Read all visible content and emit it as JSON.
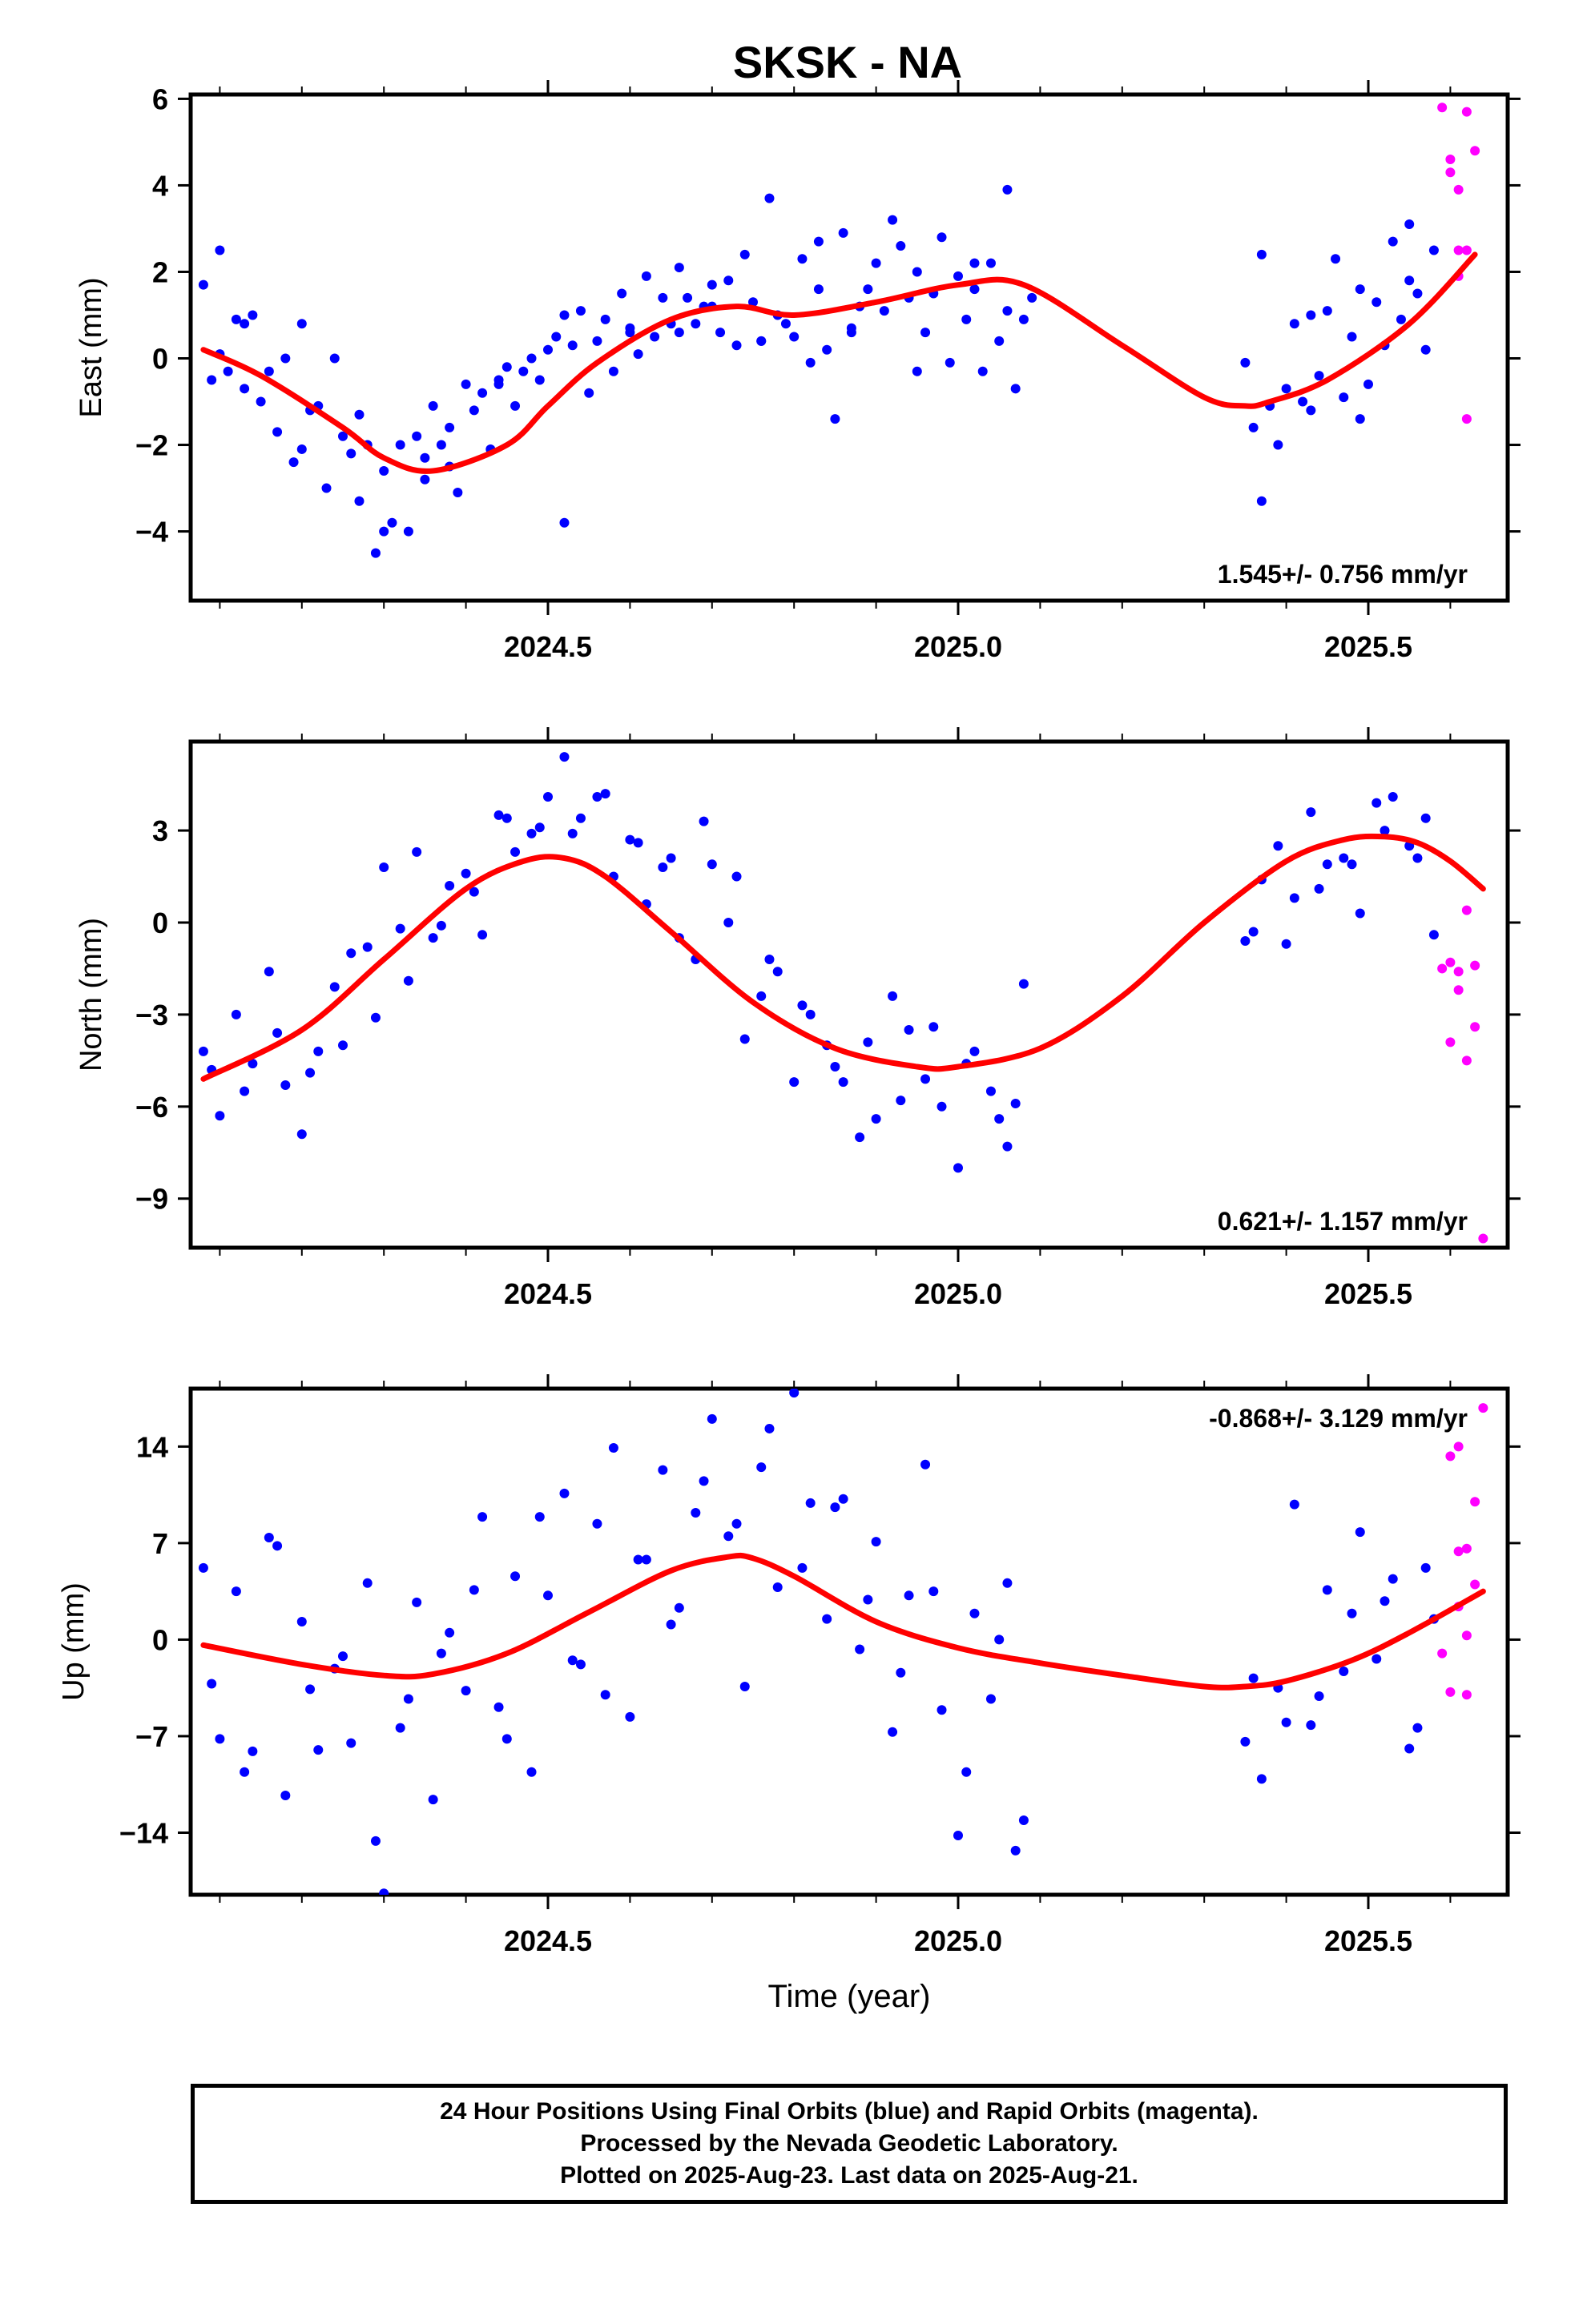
{
  "title": "SKSK - NA",
  "footer": {
    "line1": "24 Hour Positions Using Final Orbits (blue) and Rapid Orbits (magenta).",
    "line2": "Processed by the Nevada Geodetic Laboratory.",
    "line3": "Plotted on 2025-Aug-23. Last data on 2025-Aug-21."
  },
  "colors": {
    "final": "#0000ff",
    "rapid": "#ff00ff",
    "fit": "#ff0000"
  },
  "chart_data": [
    {
      "type": "scatter",
      "panel": "east",
      "ylabel": "East (mm)",
      "xlabel": "",
      "x_ticks": [
        "2024.5",
        "2025.0",
        "2025.5"
      ],
      "xlim": [
        2024.04,
        2025.64
      ],
      "ylim": [
        -5.6,
        6.1
      ],
      "y_ticks": [
        "−4",
        "−2",
        "0",
        "2",
        "4",
        "6"
      ],
      "y_tick_values": [
        -4,
        -2,
        0,
        2,
        4,
        6
      ],
      "rate_label": "1.545+/- 0.756 mm/yr",
      "fit_curve": {
        "x": [
          2024.08,
          2024.15,
          2024.25,
          2024.3,
          2024.36,
          2024.45,
          2024.5,
          2024.56,
          2024.65,
          2024.73,
          2024.8,
          2024.9,
          2025.0,
          2025.08,
          2025.2,
          2025.3,
          2025.35,
          2025.38,
          2025.45,
          2025.55,
          2025.63
        ],
        "y": [
          0.2,
          -0.4,
          -1.6,
          -2.3,
          -2.6,
          -2.0,
          -1.1,
          -0.1,
          0.9,
          1.2,
          1.0,
          1.3,
          1.7,
          1.7,
          0.3,
          -0.9,
          -1.1,
          -1.0,
          -0.5,
          0.8,
          2.4
        ]
      },
      "final_orbits": {
        "x": [
          2024.08,
          2024.09,
          2024.1,
          2024.11,
          2024.12,
          2024.13,
          2024.14,
          2024.15,
          2024.16,
          2024.17,
          2024.18,
          2024.19,
          2024.2,
          2024.21,
          2024.22,
          2024.23,
          2024.24,
          2024.25,
          2024.26,
          2024.27,
          2024.28,
          2024.29,
          2024.3,
          2024.31,
          2024.32,
          2024.33,
          2024.34,
          2024.35,
          2024.36,
          2024.37,
          2024.38,
          2024.39,
          2024.4,
          2024.41,
          2024.42,
          2024.43,
          2024.44,
          2024.45,
          2024.46,
          2024.47,
          2024.48,
          2024.49,
          2024.5,
          2024.51,
          2024.52,
          2024.53,
          2024.54,
          2024.55,
          2024.56,
          2024.57,
          2024.58,
          2024.59,
          2024.6,
          2024.61,
          2024.62,
          2024.63,
          2024.64,
          2024.65,
          2024.66,
          2024.67,
          2024.68,
          2024.69,
          2024.7,
          2024.71,
          2024.72,
          2024.73,
          2024.74,
          2024.75,
          2024.76,
          2024.77,
          2024.78,
          2024.79,
          2024.8,
          2024.81,
          2024.82,
          2024.83,
          2024.84,
          2024.85,
          2024.86,
          2024.87,
          2024.88,
          2024.89,
          2024.9,
          2024.91,
          2024.92,
          2024.93,
          2024.94,
          2024.95,
          2024.96,
          2024.97,
          2024.98,
          2024.99,
          2025.0,
          2025.01,
          2025.02,
          2025.03,
          2025.04,
          2025.05,
          2025.06,
          2025.07,
          2025.08,
          2025.09,
          2025.35,
          2025.36,
          2025.37,
          2025.38,
          2025.39,
          2025.4,
          2025.41,
          2025.42,
          2025.43,
          2025.44,
          2025.45,
          2025.46,
          2025.47,
          2025.48,
          2025.49,
          2025.5,
          2025.51,
          2025.52,
          2025.53,
          2025.54,
          2025.55,
          2025.56,
          2025.57,
          2025.58,
          2024.1,
          2024.13,
          2024.2,
          2024.27,
          2024.3,
          2024.35,
          2024.38,
          2024.44,
          2024.52,
          2024.6,
          2024.66,
          2024.7,
          2024.76,
          2024.83,
          2024.87,
          2024.95,
          2025.02,
          2025.06,
          2025.37,
          2025.43,
          2025.49,
          2025.55
        ],
        "y": [
          1.7,
          -0.5,
          2.5,
          -0.3,
          0.9,
          -0.7,
          1.0,
          -1.0,
          -0.3,
          -1.7,
          0.0,
          -2.4,
          0.8,
          -1.2,
          -1.1,
          -3.0,
          0.0,
          -1.8,
          -2.2,
          -3.3,
          -2.0,
          -4.5,
          -2.6,
          -3.8,
          -2.0,
          -4.0,
          -1.8,
          -2.3,
          -1.1,
          -2.0,
          -1.6,
          -3.1,
          -0.6,
          -1.2,
          -0.8,
          -2.1,
          -0.6,
          -0.2,
          -1.1,
          -0.3,
          0.0,
          -0.5,
          0.2,
          0.5,
          1.0,
          0.3,
          1.1,
          -0.8,
          0.4,
          0.9,
          -0.3,
          1.5,
          0.6,
          0.1,
          1.9,
          0.5,
          1.4,
          0.8,
          2.1,
          1.4,
          0.8,
          1.2,
          1.7,
          0.6,
          1.8,
          0.3,
          2.4,
          1.3,
          0.4,
          3.7,
          1.0,
          0.8,
          0.5,
          2.3,
          -0.1,
          1.6,
          0.2,
          -1.4,
          2.9,
          0.7,
          1.2,
          1.6,
          2.2,
          1.1,
          3.2,
          2.6,
          1.4,
          2.0,
          0.6,
          1.5,
          2.8,
          -0.1,
          1.9,
          0.9,
          1.6,
          -0.3,
          2.2,
          0.4,
          1.1,
          -0.7,
          0.9,
          1.4,
          -0.1,
          -1.6,
          -3.3,
          -1.1,
          -2.0,
          -0.7,
          0.8,
          -1.0,
          -1.2,
          -0.4,
          1.1,
          2.3,
          -0.9,
          0.5,
          1.6,
          -0.6,
          1.3,
          0.3,
          2.7,
          0.9,
          3.1,
          1.5,
          0.2,
          2.5,
          0.1,
          0.8,
          -2.1,
          -1.3,
          -4.0,
          -2.8,
          -2.5,
          -0.5,
          -3.8,
          0.7,
          0.6,
          1.2,
          0.4,
          2.7,
          0.6,
          -0.3,
          2.2,
          3.9,
          2.4,
          1.0,
          -1.4,
          1.8
        ],
        "color": "#0000ff"
      },
      "rapid_orbits": {
        "x": [
          2025.59,
          2025.6,
          2025.61,
          2025.62,
          2025.63,
          2025.6,
          2025.61,
          2025.62,
          2025.61,
          2025.62
        ],
        "y": [
          5.8,
          4.3,
          3.9,
          5.7,
          4.8,
          4.6,
          2.5,
          2.5,
          1.9,
          -1.4
        ],
        "color": "#ff00ff"
      }
    },
    {
      "type": "scatter",
      "panel": "north",
      "ylabel": "North (mm)",
      "xlabel": "",
      "x_ticks": [
        "2024.5",
        "2025.0",
        "2025.5"
      ],
      "xlim": [
        2024.04,
        2025.64
      ],
      "ylim": [
        -10.6,
        5.9
      ],
      "y_ticks": [
        "−9",
        "−6",
        "−3",
        "0",
        "3"
      ],
      "y_tick_values": [
        -9,
        -6,
        -3,
        0,
        3
      ],
      "rate_label": "0.621+/- 1.157 mm/yr",
      "fit_curve": {
        "x": [
          2024.08,
          2024.2,
          2024.3,
          2024.4,
          2024.47,
          2024.52,
          2024.57,
          2024.65,
          2024.75,
          2024.85,
          2024.95,
          2025.0,
          2025.1,
          2025.2,
          2025.3,
          2025.4,
          2025.47,
          2025.52,
          2025.56,
          2025.6,
          2025.64
        ],
        "y": [
          -5.1,
          -3.5,
          -1.2,
          1.1,
          2.0,
          2.1,
          1.5,
          -0.3,
          -2.6,
          -4.1,
          -4.7,
          -4.7,
          -4.1,
          -2.4,
          0.0,
          2.0,
          2.7,
          2.8,
          2.6,
          2.0,
          1.1
        ],
        "color": "#ff0000"
      },
      "final_orbits": {
        "x": [
          2024.08,
          2024.1,
          2024.12,
          2024.14,
          2024.16,
          2024.18,
          2024.2,
          2024.22,
          2024.24,
          2024.26,
          2024.28,
          2024.3,
          2024.32,
          2024.34,
          2024.36,
          2024.38,
          2024.4,
          2024.42,
          2024.44,
          2024.46,
          2024.48,
          2024.5,
          2024.52,
          2024.54,
          2024.56,
          2024.58,
          2024.6,
          2024.62,
          2024.64,
          2024.66,
          2024.68,
          2024.7,
          2024.72,
          2024.74,
          2024.76,
          2024.78,
          2024.8,
          2024.82,
          2024.84,
          2024.86,
          2024.88,
          2024.9,
          2024.92,
          2024.94,
          2024.96,
          2024.98,
          2025.0,
          2025.02,
          2025.04,
          2025.06,
          2025.08,
          2025.35,
          2025.37,
          2025.39,
          2025.41,
          2025.43,
          2025.45,
          2025.47,
          2025.49,
          2025.51,
          2025.53,
          2025.55,
          2025.57,
          2025.58,
          2024.09,
          2024.13,
          2024.17,
          2024.21,
          2024.25,
          2024.29,
          2024.33,
          2024.37,
          2024.41,
          2024.45,
          2024.49,
          2024.53,
          2024.57,
          2024.61,
          2024.65,
          2024.69,
          2024.73,
          2024.77,
          2024.81,
          2024.85,
          2024.89,
          2024.93,
          2024.97,
          2025.01,
          2025.05,
          2025.07,
          2025.36,
          2025.4,
          2025.44,
          2025.48,
          2025.52,
          2025.56
        ],
        "y": [
          -4.2,
          -6.3,
          -3.0,
          -4.6,
          -1.6,
          -5.3,
          -6.9,
          -4.2,
          -2.1,
          -1.0,
          -0.8,
          1.8,
          -0.2,
          2.3,
          -0.5,
          1.2,
          1.6,
          -0.4,
          3.5,
          2.3,
          2.9,
          4.1,
          5.4,
          3.4,
          4.1,
          1.5,
          2.7,
          0.6,
          1.8,
          -0.5,
          -1.2,
          1.9,
          0.0,
          -3.8,
          -2.4,
          -1.6,
          -5.2,
          -3.0,
          -4.0,
          -5.2,
          -7.0,
          -6.4,
          -2.4,
          -3.5,
          -5.1,
          -6.0,
          -8.0,
          -4.2,
          -5.5,
          -7.3,
          -2.0,
          -0.6,
          1.4,
          2.5,
          0.8,
          3.6,
          1.9,
          2.1,
          0.3,
          3.9,
          4.1,
          2.5,
          3.4,
          -0.4,
          -4.8,
          -5.5,
          -3.6,
          -4.9,
          -4.0,
          -3.1,
          -1.9,
          -0.1,
          1.0,
          3.4,
          3.1,
          2.9,
          4.2,
          2.6,
          2.1,
          3.3,
          1.5,
          -1.2,
          -2.7,
          -4.7,
          -3.9,
          -5.8,
          -3.4,
          -4.6,
          -6.4,
          -5.9,
          -0.3,
          -0.7,
          1.1,
          1.9,
          3.0,
          2.1
        ],
        "color": "#0000ff"
      },
      "rapid_orbits": {
        "x": [
          2025.59,
          2025.6,
          2025.61,
          2025.62,
          2025.63,
          2025.6,
          2025.61,
          2025.62,
          2025.63,
          2025.64
        ],
        "y": [
          -1.5,
          -1.3,
          -1.6,
          0.4,
          -1.4,
          -3.9,
          -2.2,
          -4.5,
          -3.4,
          -10.3
        ],
        "color": "#ff00ff"
      }
    },
    {
      "type": "scatter",
      "panel": "up",
      "ylabel": "Up (mm)",
      "xlabel": "Time (year)",
      "x_ticks": [
        "2024.5",
        "2025.0",
        "2025.5"
      ],
      "xlim": [
        2024.04,
        2025.64
      ],
      "ylim": [
        -18.5,
        18.2
      ],
      "y_ticks": [
        "−14",
        "−7",
        "0",
        "7",
        "14"
      ],
      "y_tick_values": [
        -14,
        -7,
        0,
        7,
        14
      ],
      "rate_label": "-0.868+/- 3.129 mm/yr",
      "fit_curve": {
        "x": [
          2024.08,
          2024.2,
          2024.3,
          2024.36,
          2024.45,
          2024.55,
          2024.65,
          2024.72,
          2024.75,
          2024.8,
          2024.9,
          2025.0,
          2025.1,
          2025.2,
          2025.3,
          2025.35,
          2025.4,
          2025.48,
          2025.55,
          2025.64
        ],
        "y": [
          -0.4,
          -1.8,
          -2.6,
          -2.5,
          -1.0,
          2.0,
          5.0,
          6.0,
          5.9,
          4.6,
          1.3,
          -0.6,
          -1.7,
          -2.6,
          -3.4,
          -3.4,
          -3.0,
          -1.5,
          0.5,
          3.5
        ],
        "color": "#ff0000"
      },
      "final_orbits": {
        "x": [
          2024.08,
          2024.1,
          2024.12,
          2024.14,
          2024.16,
          2024.18,
          2024.2,
          2024.22,
          2024.24,
          2024.26,
          2024.28,
          2024.3,
          2024.32,
          2024.34,
          2024.36,
          2024.38,
          2024.4,
          2024.42,
          2024.44,
          2024.46,
          2024.48,
          2024.5,
          2024.52,
          2024.54,
          2024.56,
          2024.58,
          2024.6,
          2024.62,
          2024.64,
          2024.66,
          2024.68,
          2024.7,
          2024.72,
          2024.74,
          2024.76,
          2024.78,
          2024.8,
          2024.82,
          2024.84,
          2024.86,
          2024.88,
          2024.9,
          2024.92,
          2024.94,
          2024.96,
          2024.98,
          2025.0,
          2025.02,
          2025.04,
          2025.06,
          2025.08,
          2025.35,
          2025.37,
          2025.39,
          2025.41,
          2025.43,
          2025.45,
          2025.47,
          2025.49,
          2025.51,
          2025.53,
          2025.55,
          2025.57,
          2025.58,
          2024.09,
          2024.13,
          2024.17,
          2024.21,
          2024.25,
          2024.29,
          2024.33,
          2024.37,
          2024.41,
          2024.45,
          2024.49,
          2024.53,
          2024.57,
          2024.61,
          2024.65,
          2024.69,
          2024.73,
          2024.77,
          2024.81,
          2024.85,
          2024.89,
          2024.93,
          2024.97,
          2025.01,
          2025.05,
          2025.07,
          2025.36,
          2025.4,
          2025.44,
          2025.48,
          2025.52,
          2025.56
        ],
        "y": [
          5.2,
          -7.2,
          3.5,
          -8.1,
          7.4,
          -11.3,
          1.3,
          -8.0,
          -2.1,
          -7.5,
          4.1,
          -18.4,
          -6.4,
          2.7,
          -11.6,
          0.5,
          -3.7,
          8.9,
          -4.9,
          4.6,
          -9.6,
          3.2,
          10.6,
          -1.8,
          8.4,
          13.9,
          -5.6,
          5.8,
          12.3,
          2.3,
          9.2,
          16.0,
          7.5,
          -3.4,
          12.5,
          3.8,
          17.9,
          9.9,
          1.5,
          10.2,
          -0.7,
          7.1,
          -6.7,
          3.2,
          12.7,
          -5.1,
          -14.2,
          1.9,
          -4.3,
          4.1,
          -13.1,
          -7.4,
          -10.1,
          -3.5,
          9.8,
          -6.2,
          3.6,
          -2.3,
          7.8,
          -1.4,
          4.4,
          -7.9,
          5.2,
          1.5,
          -3.2,
          -9.6,
          6.8,
          -3.6,
          -1.2,
          -14.6,
          -4.3,
          -1.0,
          3.6,
          -7.2,
          8.9,
          -1.5,
          -4.0,
          5.8,
          1.1,
          11.5,
          8.4,
          15.3,
          5.2,
          9.6,
          2.9,
          -2.4,
          3.5,
          -9.6,
          0.0,
          -15.3,
          -2.8,
          -6.0,
          -4.1,
          1.9,
          2.8,
          -6.4
        ],
        "color": "#0000ff"
      },
      "rapid_orbits": {
        "x": [
          2025.59,
          2025.6,
          2025.61,
          2025.62,
          2025.63,
          2025.6,
          2025.61,
          2025.62,
          2025.63,
          2025.64,
          2025.61,
          2025.62
        ],
        "y": [
          -1.0,
          13.3,
          14.0,
          6.6,
          10.0,
          -3.8,
          6.4,
          0.3,
          4.0,
          16.8,
          2.4,
          -4.0
        ],
        "color": "#ff00ff"
      }
    }
  ]
}
